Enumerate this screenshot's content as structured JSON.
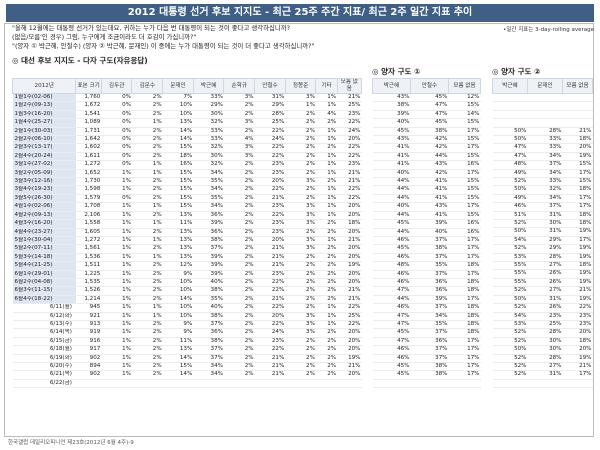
{
  "title": "2012 대통령 선거 후보 지지도 - 최근 25주 주간 지표/ 최근 2주 일간 지표 추이",
  "note": "•일간 지표는 3-day-rolling average",
  "questions": [
    "\"올해 12월에는 대통령 선거가 있는데요, 귀하는 누가 다음 번 대통령이 되는 것이 좋다고 생각하십니까?",
    "(없음/모름'인 경우) 그럼, 누구에게 조금이라도 더 호감이 가십니까?\"",
    "\"(양자 ① 박근혜, 안철수) (양자 ② 박근혜, 문재인) 이 중에는 누가 대통령이 되는 것이 더 좋다고 생각하십니까?\""
  ],
  "sections": {
    "multi": "◎ 대선 후보 지지도 - 다자 구도(자유응답)",
    "two1": "◎ 양자 구도 ①",
    "two2": "◎ 양자 구도 ②"
  },
  "multi_headers": [
    "2012년",
    "표본 크기",
    "김두관",
    "김문수",
    "문재인",
    "박근혜",
    "손학규",
    "안철수",
    "정몽준",
    "기타",
    "모름 없음"
  ],
  "two1_headers": [
    "박근혜",
    "안철수",
    "모름 없음"
  ],
  "two2_headers": [
    "박근혜",
    "문재인",
    "모름 없음"
  ],
  "rows": [
    {
      "type": "weekly",
      "label": "1월1주(02-06)",
      "n": "1,760",
      "c": [
        "0%",
        "2%",
        "7%",
        "33%",
        "3%",
        "31%",
        "3%",
        "1%",
        "21%"
      ],
      "t1": [
        "43%",
        "45%",
        "12%"
      ],
      "t2": [
        "",
        "",
        ""
      ]
    },
    {
      "type": "weekly",
      "label": "1월2주(09-13)",
      "n": "1,672",
      "c": [
        "0%",
        "2%",
        "10%",
        "29%",
        "2%",
        "29%",
        "1%",
        "1%",
        "25%"
      ],
      "t1": [
        "38%",
        "47%",
        "15%"
      ],
      "t2": [
        "",
        "",
        ""
      ]
    },
    {
      "type": "weekly",
      "label": "1월3주(16-20)",
      "n": "1,541",
      "c": [
        "0%",
        "2%",
        "10%",
        "30%",
        "2%",
        "28%",
        "2%",
        "4%",
        "23%"
      ],
      "t1": [
        "39%",
        "47%",
        "14%"
      ],
      "t2": [
        "",
        "",
        ""
      ]
    },
    {
      "type": "weekly",
      "label": "1월4주(25-27)",
      "n": "1,089",
      "c": [
        "0%",
        "1%",
        "13%",
        "32%",
        "3%",
        "25%",
        "2%",
        "2%",
        "22%"
      ],
      "t1": [
        "40%",
        "45%",
        "15%"
      ],
      "t2": [
        "",
        "",
        ""
      ]
    },
    {
      "type": "weekly",
      "label": "2월1주(30-03)",
      "n": "1,731",
      "c": [
        "0%",
        "2%",
        "14%",
        "33%",
        "2%",
        "22%",
        "2%",
        "1%",
        "24%"
      ],
      "t1": [
        "45%",
        "38%",
        "17%"
      ],
      "t2": [
        "50%",
        "28%",
        "21%"
      ]
    },
    {
      "type": "weekly",
      "label": "2월2주(06-10)",
      "n": "1,642",
      "c": [
        "0%",
        "2%",
        "14%",
        "33%",
        "4%",
        "24%",
        "2%",
        "1%",
        "20%"
      ],
      "t1": [
        "43%",
        "42%",
        "15%"
      ],
      "t2": [
        "50%",
        "33%",
        "18%"
      ]
    },
    {
      "type": "weekly",
      "label": "2월3주(13-17)",
      "n": "1,602",
      "c": [
        "0%",
        "2%",
        "15%",
        "32%",
        "3%",
        "22%",
        "2%",
        "2%",
        "22%"
      ],
      "t1": [
        "41%",
        "42%",
        "17%"
      ],
      "t2": [
        "47%",
        "33%",
        "20%"
      ]
    },
    {
      "type": "weekly",
      "label": "2월4주(20-24)",
      "n": "1,611",
      "c": [
        "0%",
        "2%",
        "18%",
        "30%",
        "3%",
        "22%",
        "2%",
        "1%",
        "22%"
      ],
      "t1": [
        "41%",
        "44%",
        "15%"
      ],
      "t2": [
        "47%",
        "34%",
        "19%"
      ]
    },
    {
      "type": "weekly",
      "label": "3월1주(27-02)",
      "n": "1,272",
      "c": [
        "0%",
        "1%",
        "16%",
        "32%",
        "2%",
        "23%",
        "2%",
        "1%",
        "23%"
      ],
      "t1": [
        "41%",
        "43%",
        "16%"
      ],
      "t2": [
        "48%",
        "37%",
        "15%"
      ]
    },
    {
      "type": "weekly",
      "label": "3월2주(05-09)",
      "n": "1,652",
      "c": [
        "1%",
        "1%",
        "15%",
        "34%",
        "2%",
        "23%",
        "2%",
        "1%",
        "21%"
      ],
      "t1": [
        "40%",
        "42%",
        "17%"
      ],
      "t2": [
        "49%",
        "34%",
        "17%"
      ]
    },
    {
      "type": "weekly",
      "label": "3월3주(12-16)",
      "n": "1,730",
      "c": [
        "1%",
        "2%",
        "15%",
        "35%",
        "2%",
        "20%",
        "3%",
        "2%",
        "21%"
      ],
      "t1": [
        "44%",
        "41%",
        "15%"
      ],
      "t2": [
        "52%",
        "33%",
        "15%"
      ]
    },
    {
      "type": "weekly",
      "label": "3월4주(19-23)",
      "n": "1,598",
      "c": [
        "1%",
        "2%",
        "15%",
        "34%",
        "2%",
        "22%",
        "2%",
        "1%",
        "22%"
      ],
      "t1": [
        "44%",
        "41%",
        "15%"
      ],
      "t2": [
        "50%",
        "32%",
        "18%"
      ]
    },
    {
      "type": "weekly",
      "label": "3월5주(26-30)",
      "n": "1,579",
      "c": [
        "0%",
        "2%",
        "15%",
        "35%",
        "2%",
        "21%",
        "2%",
        "1%",
        "22%"
      ],
      "t1": [
        "44%",
        "41%",
        "15%"
      ],
      "t2": [
        "49%",
        "34%",
        "17%"
      ]
    },
    {
      "type": "weekly",
      "label": "4월1주(02-06)",
      "n": "1,708",
      "c": [
        "1%",
        "1%",
        "15%",
        "34%",
        "2%",
        "23%",
        "3%",
        "1%",
        "20%"
      ],
      "t1": [
        "40%",
        "43%",
        "17%"
      ],
      "t2": [
        "46%",
        "37%",
        "17%"
      ]
    },
    {
      "type": "weekly",
      "label": "4월2주(09-13)",
      "n": "2,106",
      "c": [
        "1%",
        "2%",
        "13%",
        "36%",
        "2%",
        "22%",
        "3%",
        "1%",
        "20%"
      ],
      "t1": [
        "44%",
        "41%",
        "15%"
      ],
      "t2": [
        "51%",
        "31%",
        "18%"
      ]
    },
    {
      "type": "weekly",
      "label": "4월3주(16-20)",
      "n": "1,558",
      "c": [
        "1%",
        "1%",
        "11%",
        "39%",
        "2%",
        "23%",
        "3%",
        "2%",
        "18%"
      ],
      "t1": [
        "45%",
        "39%",
        "16%"
      ],
      "t2": [
        "52%",
        "30%",
        "18%"
      ]
    },
    {
      "type": "weekly",
      "label": "4월4주(23-27)",
      "n": "1,605",
      "c": [
        "1%",
        "2%",
        "13%",
        "36%",
        "2%",
        "23%",
        "2%",
        "2%",
        "20%"
      ],
      "t1": [
        "44%",
        "40%",
        "16%"
      ],
      "t2": [
        "50%",
        "31%",
        "19%"
      ]
    },
    {
      "type": "weekly",
      "label": "5월1주(30-04)",
      "n": "1,272",
      "c": [
        "1%",
        "1%",
        "13%",
        "38%",
        "2%",
        "20%",
        "3%",
        "1%",
        "21%"
      ],
      "t1": [
        "46%",
        "37%",
        "17%"
      ],
      "t2": [
        "54%",
        "29%",
        "17%"
      ]
    },
    {
      "type": "weekly",
      "label": "5월2주(07-11)",
      "n": "1,561",
      "c": [
        "1%",
        "2%",
        "13%",
        "37%",
        "2%",
        "21%",
        "3%",
        "2%",
        "20%"
      ],
      "t1": [
        "45%",
        "38%",
        "17%"
      ],
      "t2": [
        "52%",
        "29%",
        "19%"
      ]
    },
    {
      "type": "weekly",
      "label": "5월3주(14-18)",
      "n": "1,536",
      "c": [
        "1%",
        "1%",
        "13%",
        "39%",
        "2%",
        "21%",
        "2%",
        "2%",
        "20%"
      ],
      "t1": [
        "46%",
        "37%",
        "17%"
      ],
      "t2": [
        "53%",
        "28%",
        "19%"
      ]
    },
    {
      "type": "weekly",
      "label": "5월4주(21-25)",
      "n": "1,511",
      "c": [
        "1%",
        "2%",
        "12%",
        "39%",
        "2%",
        "21%",
        "2%",
        "2%",
        "19%"
      ],
      "t1": [
        "48%",
        "35%",
        "18%"
      ],
      "t2": [
        "55%",
        "27%",
        "18%"
      ]
    },
    {
      "type": "weekly",
      "label": "6월1주(29-01)",
      "n": "1,225",
      "c": [
        "1%",
        "2%",
        "9%",
        "39%",
        "2%",
        "23%",
        "2%",
        "2%",
        "20%"
      ],
      "t1": [
        "46%",
        "37%",
        "17%"
      ],
      "t2": [
        "55%",
        "26%",
        "19%"
      ]
    },
    {
      "type": "weekly",
      "label": "6월2주(04-08)",
      "n": "1,535",
      "c": [
        "1%",
        "2%",
        "10%",
        "40%",
        "2%",
        "22%",
        "2%",
        "2%",
        "20%"
      ],
      "t1": [
        "46%",
        "36%",
        "18%"
      ],
      "t2": [
        "55%",
        "26%",
        "19%"
      ]
    },
    {
      "type": "weekly",
      "label": "6월3주(11-15)",
      "n": "1,526",
      "c": [
        "1%",
        "2%",
        "10%",
        "38%",
        "2%",
        "22%",
        "2%",
        "2%",
        "21%"
      ],
      "t1": [
        "47%",
        "36%",
        "18%"
      ],
      "t2": [
        "52%",
        "27%",
        "21%"
      ]
    },
    {
      "type": "weekly",
      "label": "6월4주(18-22)",
      "n": "1,214",
      "c": [
        "1%",
        "2%",
        "14%",
        "35%",
        "2%",
        "21%",
        "2%",
        "2%",
        "21%"
      ],
      "t1": [
        "44%",
        "39%",
        "17%"
      ],
      "t2": [
        "50%",
        "31%",
        "19%"
      ]
    },
    {
      "type": "daily",
      "label": "6/11(월)",
      "n": "945",
      "c": [
        "1%",
        "1%",
        "10%",
        "40%",
        "2%",
        "22%",
        "2%",
        "1%",
        "22%"
      ],
      "t1": [
        "46%",
        "37%",
        "18%"
      ],
      "t2": [
        "52%",
        "26%",
        "22%"
      ]
    },
    {
      "type": "daily",
      "label": "6/12(화)",
      "n": "921",
      "c": [
        "1%",
        "1%",
        "10%",
        "38%",
        "2%",
        "20%",
        "3%",
        "1%",
        "25%"
      ],
      "t1": [
        "47%",
        "34%",
        "18%"
      ],
      "t2": [
        "54%",
        "23%",
        "23%"
      ]
    },
    {
      "type": "daily",
      "label": "6/13(수)",
      "n": "913",
      "c": [
        "1%",
        "2%",
        "9%",
        "37%",
        "2%",
        "22%",
        "3%",
        "1%",
        "22%"
      ],
      "t1": [
        "47%",
        "35%",
        "18%"
      ],
      "t2": [
        "53%",
        "25%",
        "23%"
      ]
    },
    {
      "type": "daily",
      "label": "6/14(목)",
      "n": "919",
      "c": [
        "1%",
        "2%",
        "9%",
        "36%",
        "2%",
        "24%",
        "3%",
        "2%",
        "20%"
      ],
      "t1": [
        "45%",
        "37%",
        "18%"
      ],
      "t2": [
        "52%",
        "28%",
        "20%"
      ]
    },
    {
      "type": "daily",
      "label": "6/15(금)",
      "n": "916",
      "c": [
        "1%",
        "2%",
        "11%",
        "38%",
        "2%",
        "23%",
        "2%",
        "2%",
        "20%"
      ],
      "t1": [
        "47%",
        "36%",
        "17%"
      ],
      "t2": [
        "52%",
        "30%",
        "18%"
      ]
    },
    {
      "type": "daily",
      "label": "6/18(월)",
      "n": "917",
      "c": [
        "1%",
        "2%",
        "13%",
        "37%",
        "2%",
        "22%",
        "2%",
        "2%",
        "20%"
      ],
      "t1": [
        "46%",
        "37%",
        "17%"
      ],
      "t2": [
        "50%",
        "30%",
        "20%"
      ]
    },
    {
      "type": "daily",
      "label": "6/19(화)",
      "n": "902",
      "c": [
        "1%",
        "2%",
        "14%",
        "37%",
        "2%",
        "21%",
        "2%",
        "2%",
        "19%"
      ],
      "t1": [
        "46%",
        "37%",
        "17%"
      ],
      "t2": [
        "52%",
        "28%",
        "19%"
      ]
    },
    {
      "type": "daily",
      "label": "6/20(수)",
      "n": "894",
      "c": [
        "1%",
        "2%",
        "15%",
        "34%",
        "2%",
        "21%",
        "2%",
        "2%",
        "21%"
      ],
      "t1": [
        "45%",
        "38%",
        "17%"
      ],
      "t2": [
        "52%",
        "27%",
        "21%"
      ]
    },
    {
      "type": "daily",
      "label": "6/21(목)",
      "n": "902",
      "c": [
        "1%",
        "2%",
        "14%",
        "34%",
        "2%",
        "21%",
        "2%",
        "2%",
        "20%"
      ],
      "t1": [
        "45%",
        "38%",
        "17%"
      ],
      "t2": [
        "52%",
        "31%",
        "17%"
      ]
    },
    {
      "type": "daily",
      "label": "6/22(금)",
      "n": "",
      "c": [
        "",
        "",
        "",
        "",
        "",
        "",
        "",
        "",
        ""
      ],
      "t1": [
        "",
        "",
        ""
      ],
      "t2": [
        "",
        "",
        ""
      ]
    }
  ],
  "footer": "한국갤럽 데일리오피니언 제23호(2012년 6월 4주)-9"
}
